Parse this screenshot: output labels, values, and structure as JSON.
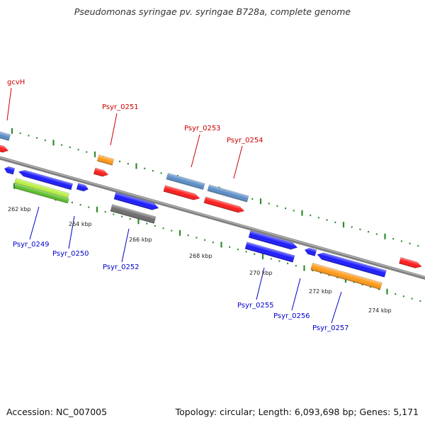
{
  "title": "Pseudomonas syringae pv. syringae B728a, complete genome",
  "footer": {
    "accession": "Accession: NC_007005",
    "summary": "Topology: circular; Length: 6,093,698 bp; Genes: 5,171"
  },
  "colors": {
    "backbone": "#808080",
    "tick": "#2e8b2e",
    "label_top": "#cc0000",
    "label_bottom": "#0000cc",
    "red": "#ff1a1a",
    "blue": "#1a1aff",
    "steelblue": "#5b8ec8",
    "orange": "#ff9a1a",
    "green": "#5cc02a",
    "lime": "#b8f040",
    "gray": "#6e6e6e"
  },
  "scale_labels": [
    "262 kbp",
    "264 kbp",
    "266 kbp",
    "268 kbp",
    "270 kbp",
    "272 kbp",
    "274 kbp"
  ],
  "top_labels": [
    "gcvH",
    "Psyr_0251",
    "Psyr_0253",
    "Psyr_0254"
  ],
  "bottom_labels": [
    "Psyr_0249",
    "Psyr_0250",
    "Psyr_0252",
    "Psyr_0255",
    "Psyr_0256",
    "Psyr_0257"
  ]
}
